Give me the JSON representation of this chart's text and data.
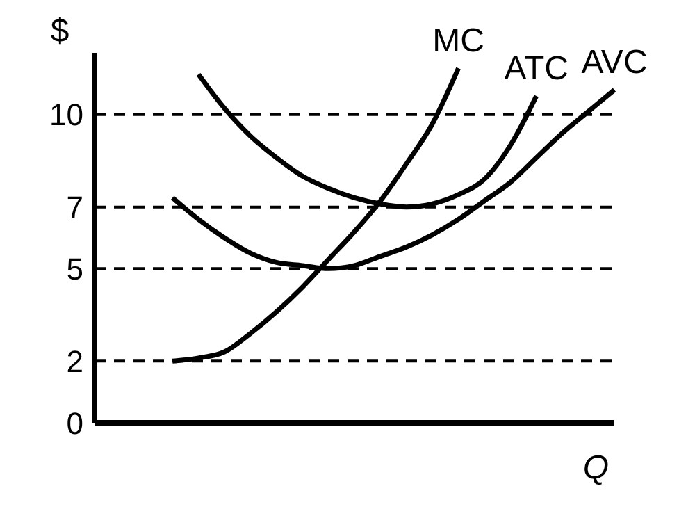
{
  "chart_data": {
    "type": "line",
    "xlabel": "Q",
    "ylabel": "$",
    "ylim": [
      0,
      12
    ],
    "yticks": [
      0,
      2,
      5,
      7,
      10
    ],
    "tick_labels": "y",
    "legend": false,
    "categories": [
      null,
      null,
      null,
      null,
      null,
      null,
      null,
      null,
      null,
      null,
      null,
      null,
      null,
      null,
      null,
      null,
      null,
      null,
      null,
      null,
      null
    ],
    "ref_lines": [
      {
        "axis": "y",
        "value": 2,
        "line_style": "dashed"
      },
      {
        "axis": "y",
        "value": 5,
        "line_style": "dashed"
      },
      {
        "axis": "y",
        "value": 7,
        "line_style": "dashed"
      },
      {
        "axis": "y",
        "value": 10,
        "line_style": "dashed"
      }
    ],
    "series": [
      {
        "name": "MC",
        "color": "#000000",
        "values": [
          null,
          null,
          null,
          2,
          2.1,
          2.3,
          2.9,
          3.6,
          4.4,
          5.3,
          6.2,
          7.2,
          8.4,
          9.7,
          11.5,
          null,
          null,
          null,
          null,
          null,
          null
        ]
      },
      {
        "name": "ATC",
        "color": "#000000",
        "values": [
          null,
          null,
          null,
          null,
          11.3,
          10.2,
          9.3,
          8.6,
          8.0,
          7.6,
          7.3,
          7.1,
          7,
          7.1,
          7.4,
          7.9,
          9.0,
          10.6,
          null,
          null,
          null
        ]
      },
      {
        "name": "AVC",
        "color": "#000000",
        "values": [
          null,
          null,
          null,
          7.3,
          6.6,
          6.0,
          5.5,
          5.2,
          5.1,
          5,
          5.1,
          5.4,
          5.7,
          6.1,
          6.6,
          7.2,
          7.8,
          8.6,
          9.4,
          10.1,
          10.8
        ]
      }
    ]
  }
}
